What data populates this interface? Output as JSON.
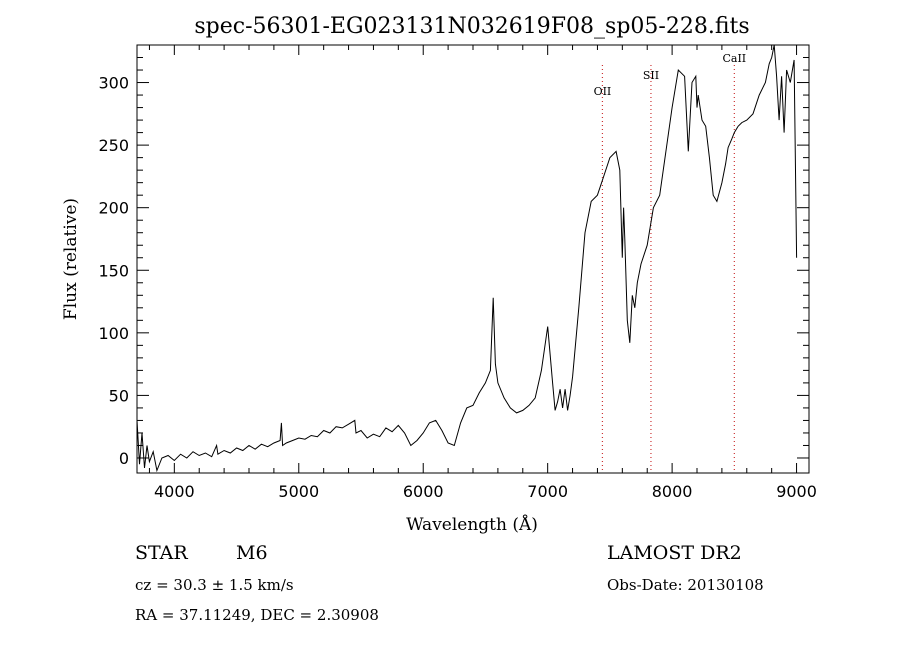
{
  "chart_data": {
    "type": "line",
    "title": "spec-56301-EG023131N032619F08_sp05-228.fits",
    "xlabel": "Wavelength (Å)",
    "ylabel": "Flux (relative)",
    "xlim": [
      3700,
      9100
    ],
    "ylim": [
      -12,
      330
    ],
    "x_ticks": [
      4000,
      5000,
      6000,
      7000,
      8000,
      9000
    ],
    "y_ticks": [
      0,
      50,
      100,
      150,
      200,
      250,
      300
    ],
    "grid": false,
    "line_color": "#000000",
    "marker_color": "#cc3333",
    "series": [
      {
        "x": [
          3700,
          3720,
          3740,
          3760,
          3780,
          3800,
          3830,
          3860,
          3900,
          3950,
          4000,
          4050,
          4100,
          4150,
          4200,
          4250,
          4300,
          4340,
          4350,
          4400,
          4450,
          4500,
          4550,
          4600,
          4650,
          4700,
          4750,
          4800,
          4850,
          4860,
          4870,
          4900,
          4950,
          5000,
          5050,
          5100,
          5150,
          5200,
          5250,
          5300,
          5350,
          5400,
          5450,
          5460,
          5500,
          5550,
          5600,
          5650,
          5700,
          5750,
          5800,
          5850,
          5900,
          5950,
          6000,
          6050,
          6100,
          6150,
          6200,
          6250,
          6300,
          6350,
          6400,
          6450,
          6500,
          6540,
          6562,
          6580,
          6600,
          6650,
          6700,
          6750,
          6800,
          6850,
          6900,
          6950,
          7000,
          7040,
          7060,
          7080,
          7100,
          7120,
          7140,
          7160,
          7180,
          7200,
          7250,
          7300,
          7350,
          7400,
          7450,
          7500,
          7550,
          7580,
          7600,
          7610,
          7620,
          7640,
          7660,
          7680,
          7700,
          7720,
          7750,
          7800,
          7850,
          7900,
          7950,
          8000,
          8050,
          8100,
          8130,
          8160,
          8190,
          8200,
          8210,
          8240,
          8270,
          8300,
          8330,
          8360,
          8400,
          8430,
          8450,
          8480,
          8500,
          8530,
          8560,
          8600,
          8650,
          8700,
          8750,
          8780,
          8800,
          8820,
          8840,
          8860,
          8880,
          8900,
          8920,
          8950,
          8980,
          9000
        ],
        "y": [
          30,
          -5,
          20,
          -8,
          10,
          -3,
          5,
          -10,
          0,
          2,
          -2,
          3,
          0,
          5,
          2,
          4,
          1,
          10,
          3,
          6,
          4,
          8,
          6,
          10,
          7,
          11,
          9,
          12,
          14,
          28,
          10,
          12,
          14,
          16,
          15,
          18,
          17,
          22,
          20,
          25,
          24,
          27,
          30,
          20,
          22,
          16,
          19,
          17,
          24,
          21,
          26,
          20,
          10,
          14,
          20,
          28,
          30,
          22,
          12,
          10,
          28,
          40,
          42,
          52,
          60,
          70,
          128,
          75,
          60,
          48,
          40,
          36,
          38,
          42,
          48,
          70,
          105,
          60,
          38,
          45,
          55,
          40,
          55,
          38,
          50,
          65,
          120,
          180,
          205,
          210,
          225,
          240,
          245,
          230,
          160,
          200,
          175,
          110,
          92,
          130,
          120,
          140,
          155,
          170,
          200,
          210,
          245,
          280,
          310,
          305,
          245,
          300,
          305,
          280,
          290,
          270,
          265,
          240,
          210,
          205,
          220,
          235,
          248,
          255,
          260,
          265,
          268,
          270,
          275,
          290,
          300,
          315,
          320,
          330,
          305,
          270,
          305,
          260,
          310,
          300,
          318,
          160
        ]
      }
    ],
    "spectral_lines": [
      {
        "label": "OII",
        "x": 7440
      },
      {
        "label": "SII",
        "x": 7830
      },
      {
        "label": "CaII",
        "x": 8500
      }
    ],
    "annotations": {
      "object_type": "STAR",
      "subclass": "M6",
      "survey": "LAMOST DR2",
      "cz": "cz = 30.3 ± 1.5 km/s",
      "obs_date": "Obs-Date: 20130108",
      "coords": "RA =  37.11249, DEC =   2.30908"
    }
  }
}
